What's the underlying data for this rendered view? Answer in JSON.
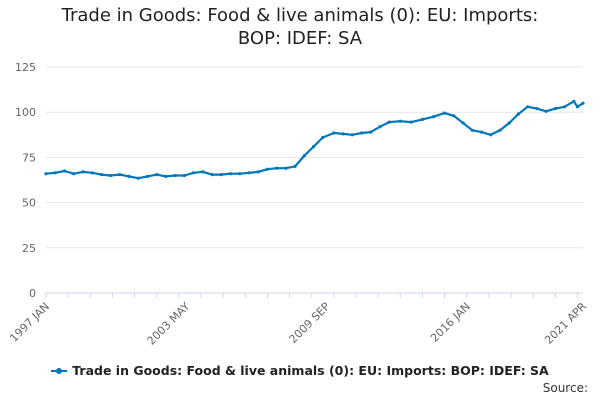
{
  "chart_data": {
    "type": "line",
    "title": "Trade in Goods: Food & live animals (0): EU: Imports: BOP: IDEF: SA",
    "xlabel": "",
    "ylabel": "",
    "x_tick_labels": [
      "1997 JAN",
      "2003 MAY",
      "2009 SEP",
      "2016 JAN",
      "2021 APR"
    ],
    "y_ticks": [
      0,
      25,
      50,
      75,
      100,
      125
    ],
    "ylim": [
      0,
      125
    ],
    "xlim": [
      "1997-01",
      "2021-04"
    ],
    "grid": true,
    "legend_position": "bottom",
    "source_label": "Source:",
    "series": [
      {
        "name": "Trade in Goods: Food & live animals (0): EU: Imports: BOP: IDEF: SA",
        "color": "#0077bb",
        "points": [
          [
            "1997-01",
            66
          ],
          [
            "1997-06",
            66.5
          ],
          [
            "1997-11",
            67.5
          ],
          [
            "1998-04",
            66
          ],
          [
            "1998-09",
            67
          ],
          [
            "1999-02",
            66.5
          ],
          [
            "1999-07",
            65.5
          ],
          [
            "1999-12",
            65
          ],
          [
            "2000-05",
            65.5
          ],
          [
            "2000-10",
            64.5
          ],
          [
            "2001-03",
            63.5
          ],
          [
            "2001-08",
            64.5
          ],
          [
            "2002-01",
            65.5
          ],
          [
            "2002-06",
            64.5
          ],
          [
            "2002-11",
            65
          ],
          [
            "2003-04",
            65
          ],
          [
            "2003-09",
            66.5
          ],
          [
            "2004-02",
            67
          ],
          [
            "2004-07",
            65.5
          ],
          [
            "2004-12",
            65.5
          ],
          [
            "2005-05",
            66
          ],
          [
            "2005-10",
            66
          ],
          [
            "2006-03",
            66.5
          ],
          [
            "2006-08",
            67
          ],
          [
            "2007-01",
            68.5
          ],
          [
            "2007-06",
            69
          ],
          [
            "2007-11",
            69
          ],
          [
            "2008-04",
            70
          ],
          [
            "2008-09",
            76
          ],
          [
            "2009-02",
            81
          ],
          [
            "2009-07",
            86
          ],
          [
            "2010-01",
            88.5
          ],
          [
            "2010-06",
            88
          ],
          [
            "2010-11",
            87.5
          ],
          [
            "2011-04",
            88.5
          ],
          [
            "2011-09",
            89
          ],
          [
            "2012-02",
            92
          ],
          [
            "2012-07",
            94.5
          ],
          [
            "2013-01",
            95
          ],
          [
            "2013-07",
            94.5
          ],
          [
            "2014-01",
            96
          ],
          [
            "2014-07",
            97.5
          ],
          [
            "2015-01",
            99.5
          ],
          [
            "2015-06",
            98
          ],
          [
            "2015-11",
            94
          ],
          [
            "2016-04",
            90
          ],
          [
            "2016-09",
            89
          ],
          [
            "2017-02",
            87.5
          ],
          [
            "2017-07",
            90
          ],
          [
            "2017-12",
            94
          ],
          [
            "2018-05",
            99
          ],
          [
            "2018-10",
            103
          ],
          [
            "2019-03",
            102
          ],
          [
            "2019-08",
            100.5
          ],
          [
            "2020-01",
            102
          ],
          [
            "2020-06",
            103
          ],
          [
            "2020-11",
            106
          ],
          [
            "2021-01",
            103
          ],
          [
            "2021-04",
            105
          ]
        ]
      }
    ]
  }
}
